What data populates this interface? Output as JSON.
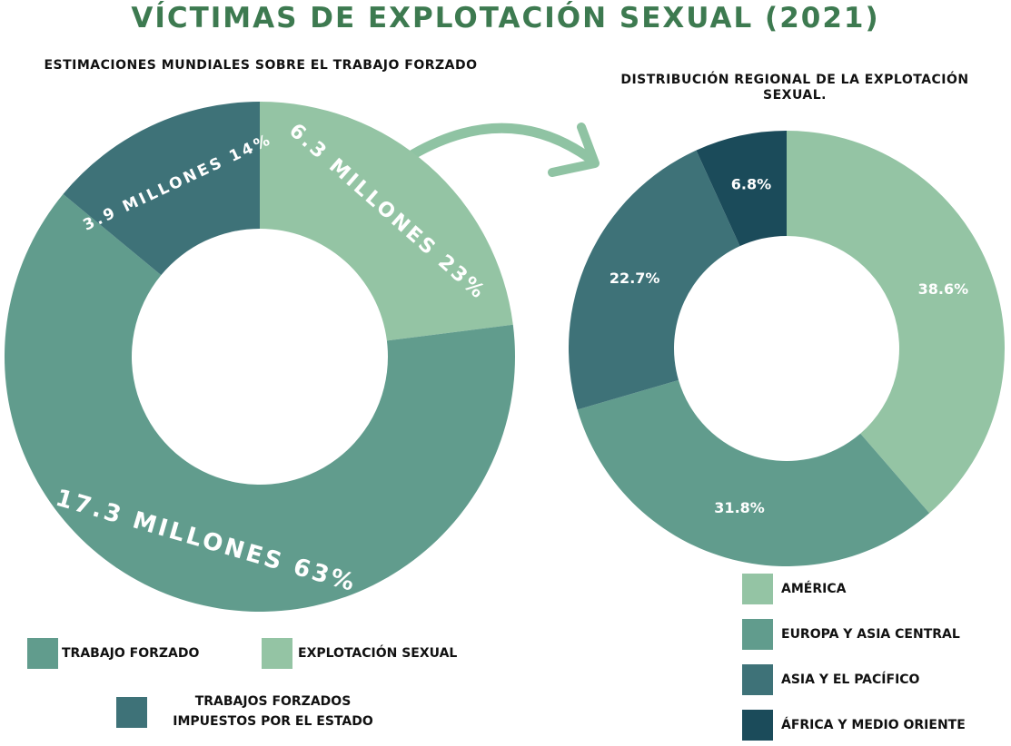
{
  "title": "VÍCTIMAS DE EXPLOTACIÓN SEXUAL (2021)",
  "chart_data": [
    {
      "type": "pie",
      "title": "ESTIMACIONES MUNDIALES SOBRE EL TRABAJO FORZADO",
      "categories": [
        "EXPLOTACIÓN SEXUAL",
        "TRABAJO FORZADO",
        "TRABAJOS FORZADOS IMPUESTOS POR EL ESTADO"
      ],
      "values": [
        23,
        63,
        14
      ],
      "value_labels": [
        "6.3 MILLONES 23%",
        "17.3 MILLONES 63%",
        "3.9 MILLONES 14%"
      ],
      "colors": [
        "#94c4a4",
        "#619c8d",
        "#3e7278"
      ]
    },
    {
      "type": "pie",
      "title": "DISTRIBUCIÓN REGIONAL DE LA EXPLOTACIÓN SEXUAL.",
      "categories": [
        "AMÉRICA",
        "EUROPA Y ASIA CENTRAL",
        "ASIA Y EL PACÍFICO",
        "ÁFRICA Y MEDIO ORIENTE"
      ],
      "values": [
        38.6,
        31.8,
        22.7,
        6.8
      ],
      "value_labels": [
        "38.6%",
        "31.8%",
        "22.7%",
        "6.8%"
      ],
      "colors": [
        "#94c4a4",
        "#619c8d",
        "#3e7278",
        "#1b4b5a"
      ]
    }
  ]
}
